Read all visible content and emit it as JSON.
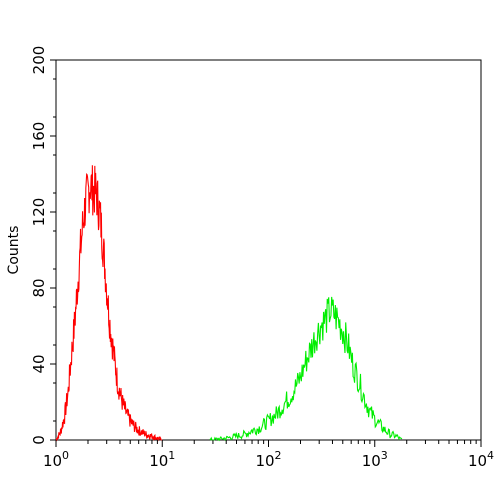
{
  "chart_data": {
    "type": "line",
    "title": "",
    "xlabel": "",
    "ylabel": "Counts",
    "x_scale": "log",
    "xlim": [
      1,
      10000
    ],
    "ylim": [
      0,
      200
    ],
    "grid": false,
    "legend": "none",
    "x_ticks": [
      {
        "value": 1,
        "base": "10",
        "exp": "0"
      },
      {
        "value": 10,
        "base": "10",
        "exp": "1"
      },
      {
        "value": 100,
        "base": "10",
        "exp": "2"
      },
      {
        "value": 1000,
        "base": "10",
        "exp": "3"
      },
      {
        "value": 10000,
        "base": "10",
        "exp": "4"
      }
    ],
    "y_ticks": [
      {
        "value": 0,
        "label": "0"
      },
      {
        "value": 40,
        "label": "40"
      },
      {
        "value": 80,
        "label": "80"
      },
      {
        "value": 120,
        "label": "120"
      },
      {
        "value": 160,
        "label": "160"
      },
      {
        "value": 200,
        "label": "200"
      }
    ],
    "series": [
      {
        "color": "#ff0000",
        "points": [
          [
            1.0,
            0
          ],
          [
            1.1,
            4
          ],
          [
            1.2,
            12
          ],
          [
            1.3,
            25
          ],
          [
            1.4,
            45
          ],
          [
            1.5,
            62
          ],
          [
            1.6,
            82
          ],
          [
            1.7,
            100
          ],
          [
            1.8,
            115
          ],
          [
            1.9,
            125
          ],
          [
            2.0,
            130
          ],
          [
            2.1,
            135
          ],
          [
            2.2,
            132
          ],
          [
            2.4,
            130
          ],
          [
            2.6,
            118
          ],
          [
            2.8,
            100
          ],
          [
            3.0,
            80
          ],
          [
            3.2,
            62
          ],
          [
            3.5,
            45
          ],
          [
            3.8,
            30
          ],
          [
            4.2,
            20
          ],
          [
            4.6,
            14
          ],
          [
            5.0,
            10
          ],
          [
            5.5,
            7
          ],
          [
            6.0,
            5
          ],
          [
            7.0,
            3
          ],
          [
            8.0,
            2
          ],
          [
            9.0,
            1
          ],
          [
            10.0,
            0
          ]
        ]
      },
      {
        "color": "#00ee00",
        "points": [
          [
            28,
            0
          ],
          [
            40,
            1
          ],
          [
            50,
            2
          ],
          [
            60,
            3
          ],
          [
            70,
            5
          ],
          [
            80,
            6
          ],
          [
            90,
            8
          ],
          [
            100,
            10
          ],
          [
            120,
            14
          ],
          [
            140,
            19
          ],
          [
            160,
            23
          ],
          [
            180,
            28
          ],
          [
            200,
            33
          ],
          [
            220,
            40
          ],
          [
            250,
            48
          ],
          [
            280,
            55
          ],
          [
            310,
            60
          ],
          [
            340,
            63
          ],
          [
            380,
            68
          ],
          [
            420,
            66
          ],
          [
            460,
            62
          ],
          [
            500,
            58
          ],
          [
            560,
            50
          ],
          [
            620,
            40
          ],
          [
            700,
            32
          ],
          [
            800,
            22
          ],
          [
            900,
            15
          ],
          [
            1000,
            11
          ],
          [
            1200,
            6
          ],
          [
            1400,
            3
          ],
          [
            1600,
            2
          ],
          [
            1800,
            0
          ]
        ]
      }
    ]
  }
}
